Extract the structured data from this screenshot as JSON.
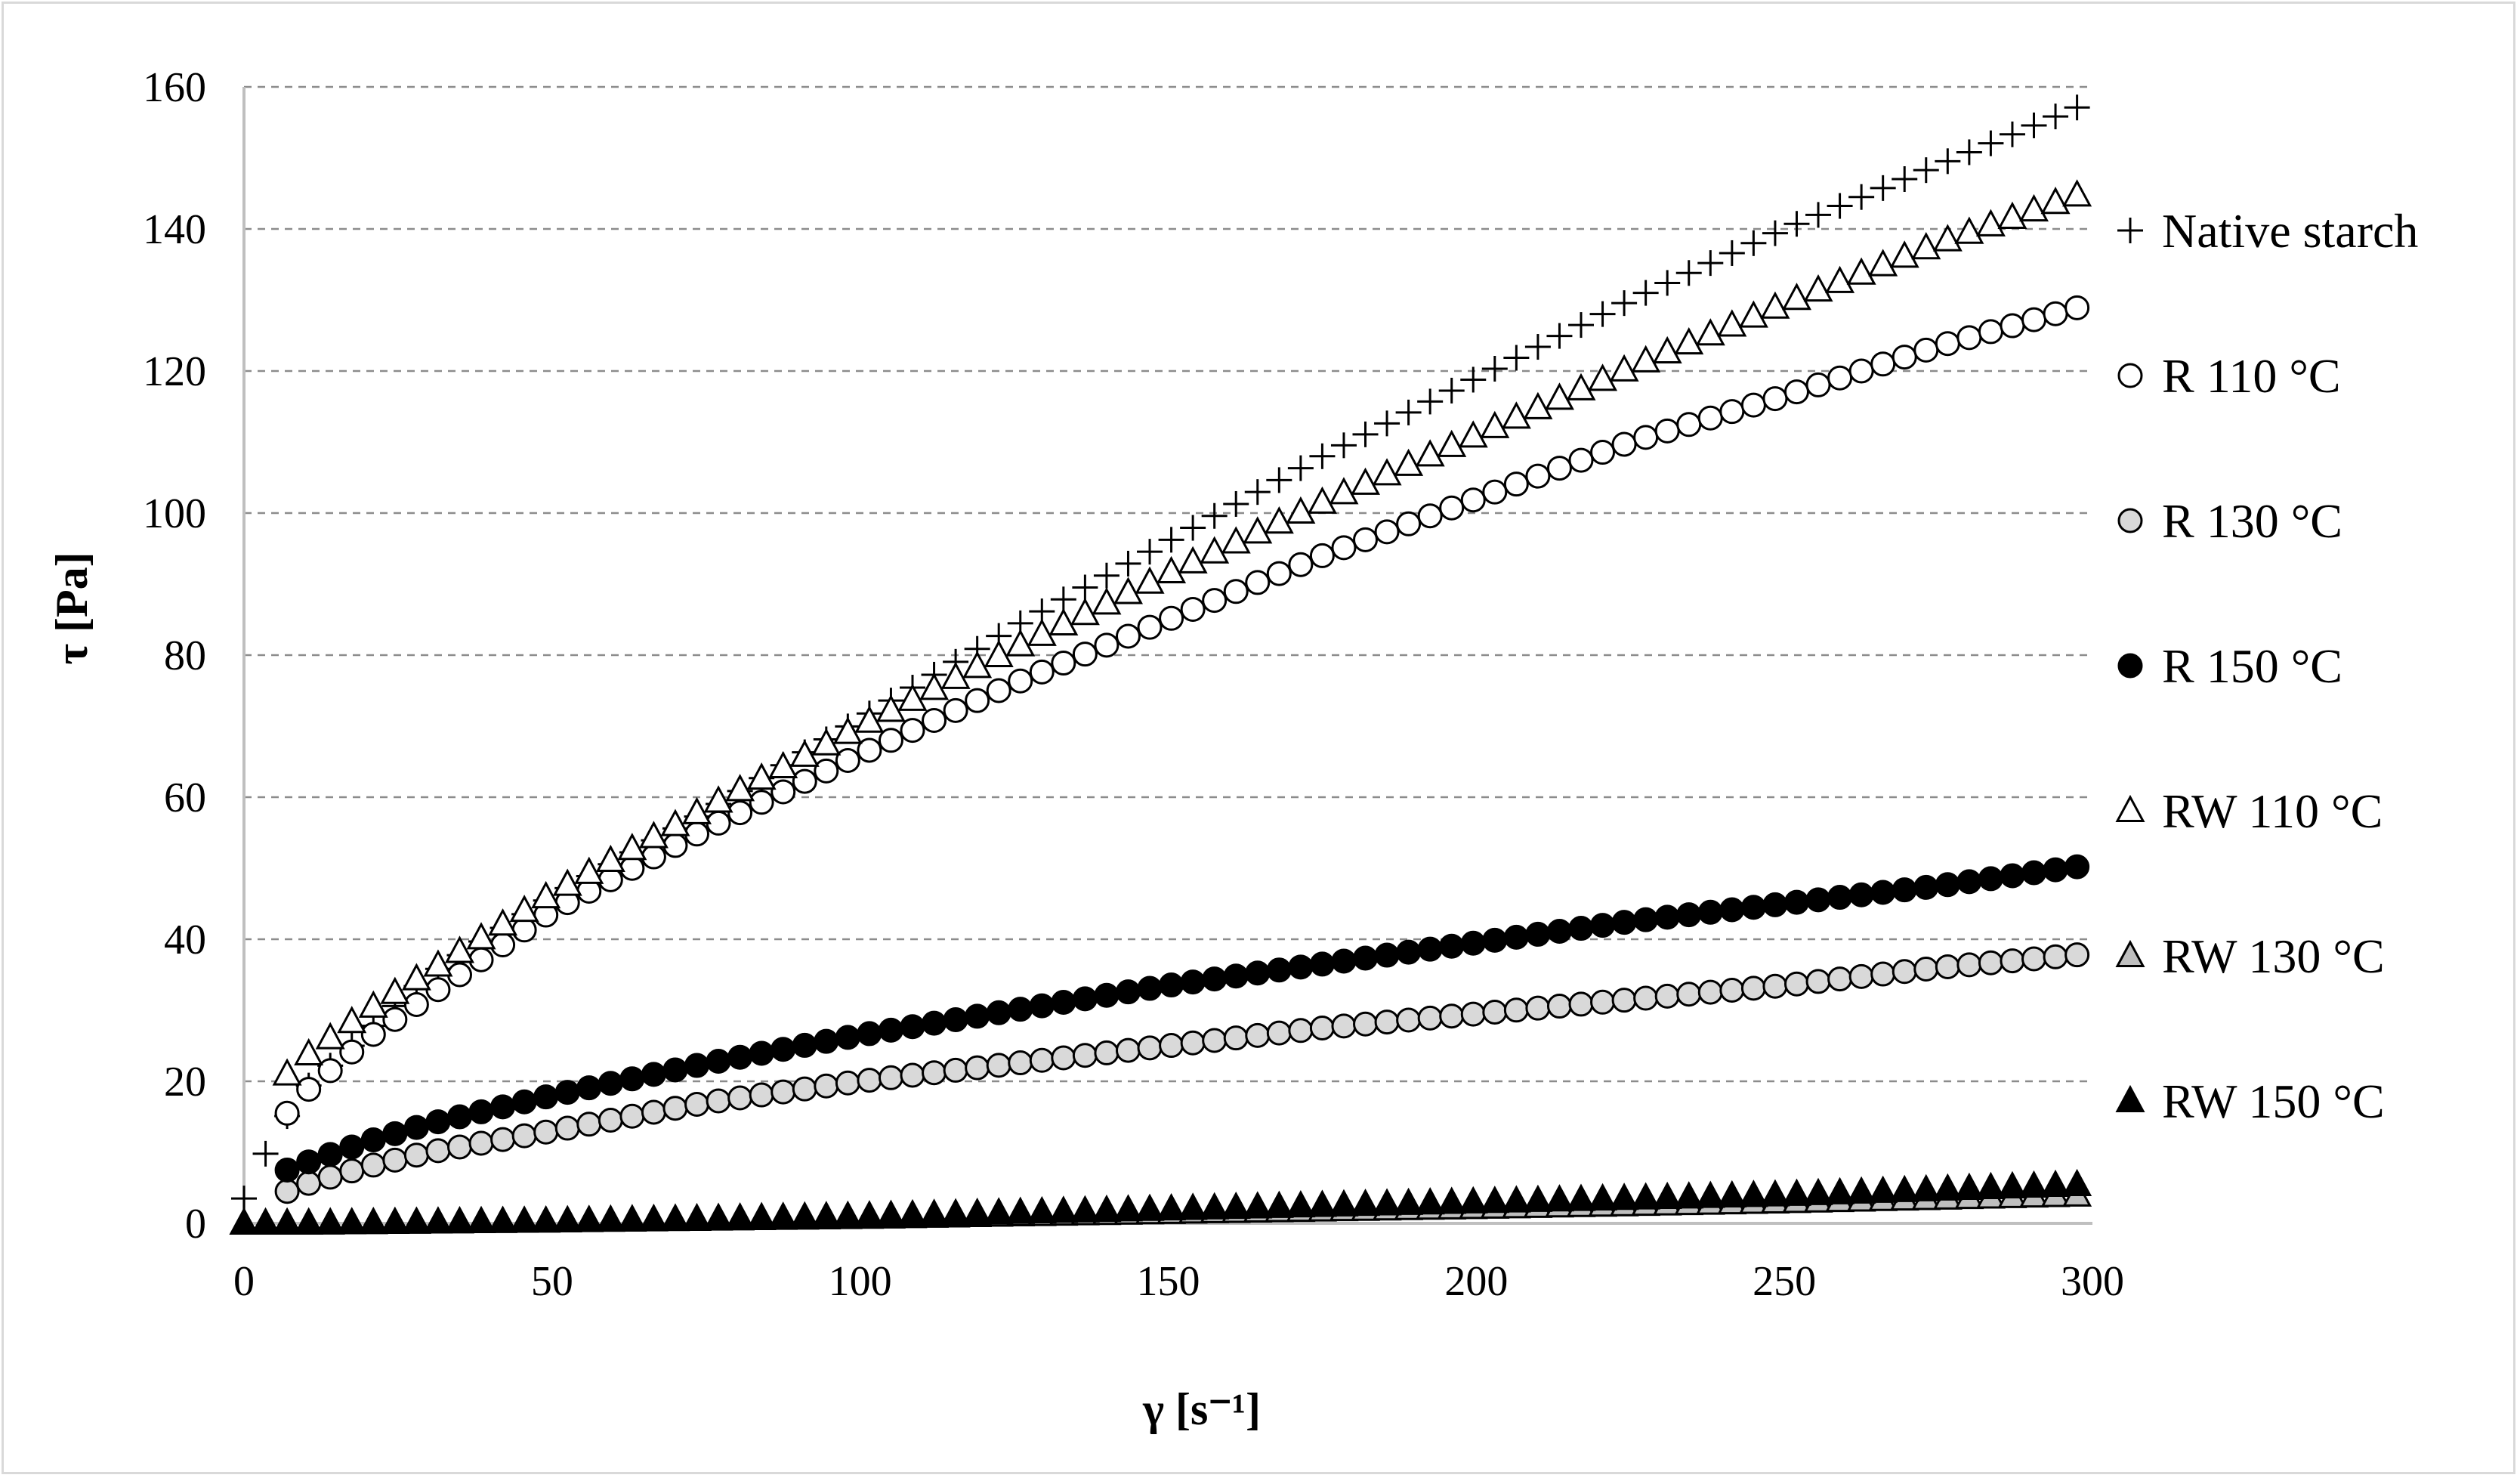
{
  "chart_data": {
    "type": "scatter",
    "title": "",
    "xlabel": "γ [s⁻¹]",
    "ylabel": "τ [Pa]",
    "xlim": [
      0,
      300
    ],
    "ylim": [
      0,
      160
    ],
    "x_ticks": [
      "0",
      "50",
      "100",
      "150",
      "200",
      "250",
      "300"
    ],
    "y_ticks": [
      "0",
      "20",
      "40",
      "60",
      "80",
      "100",
      "120",
      "140",
      "160"
    ],
    "grid": "horizontal dashed",
    "legend_position": "right",
    "series": [
      {
        "name": "Native starch",
        "marker": "plus",
        "color": "#000000",
        "x": [
          0,
          5,
          10,
          20,
          30,
          50,
          75,
          100,
          125,
          150,
          175,
          200,
          225,
          250,
          275,
          300
        ],
        "y": [
          3.5,
          12.5,
          19,
          27,
          35,
          46,
          58,
          71,
          84,
          96,
          108,
          119,
          130,
          140,
          149,
          158
        ]
      },
      {
        "name": "R 110 °C",
        "marker": "circle-open",
        "color": "#ffffff",
        "x": [
          7,
          10,
          20,
          30,
          50,
          75,
          100,
          125,
          150,
          175,
          200,
          225,
          250,
          275,
          300
        ],
        "y": [
          15.5,
          18.5,
          26,
          32,
          44,
          55.5,
          66,
          76,
          85,
          94,
          102,
          110,
          116.5,
          123.5,
          129.5
        ]
      },
      {
        "name": "R 130 °C",
        "marker": "circle-gray",
        "color": "#d9d9d9",
        "x": [
          7,
          10,
          20,
          30,
          50,
          75,
          100,
          125,
          150,
          175,
          200,
          225,
          250,
          275,
          300
        ],
        "y": [
          4.5,
          5.5,
          8,
          10,
          13,
          17,
          20,
          22.5,
          25,
          27.5,
          29.5,
          31.5,
          33.5,
          36,
          38
        ]
      },
      {
        "name": "R 150 °C",
        "marker": "circle-filled",
        "color": "#000000",
        "x": [
          7,
          10,
          20,
          30,
          50,
          75,
          100,
          125,
          150,
          175,
          200,
          225,
          250,
          275,
          300
        ],
        "y": [
          7.5,
          8.5,
          11.5,
          14,
          18,
          22.5,
          26.5,
          30,
          33.5,
          36.5,
          39.5,
          42.5,
          45,
          47.5,
          50.5
        ]
      },
      {
        "name": "RW 110 °C",
        "marker": "triangle-open",
        "color": "#ffffff",
        "x": [
          7,
          10,
          20,
          30,
          50,
          75,
          100,
          125,
          150,
          175,
          200,
          225,
          250,
          275,
          300
        ],
        "y": [
          21,
          23.5,
          30,
          35.5,
          46.5,
          58.5,
          70,
          81,
          91.5,
          101.5,
          111,
          120.5,
          129.5,
          138,
          145.5
        ]
      },
      {
        "name": "RW 130 °C",
        "marker": "triangle-gray",
        "color": "#bfbfbf",
        "x": [
          0,
          10,
          50,
          100,
          150,
          200,
          250,
          300
        ],
        "y": [
          0,
          0,
          0.3,
          0.8,
          1.5,
          2.2,
          3,
          4
        ]
      },
      {
        "name": "RW 150 °C",
        "marker": "triangle-filled",
        "color": "#000000",
        "x": [
          0,
          10,
          50,
          100,
          150,
          200,
          250,
          300
        ],
        "y": [
          0,
          0,
          0.3,
          1,
          2,
          3,
          4,
          5.5
        ]
      }
    ]
  }
}
